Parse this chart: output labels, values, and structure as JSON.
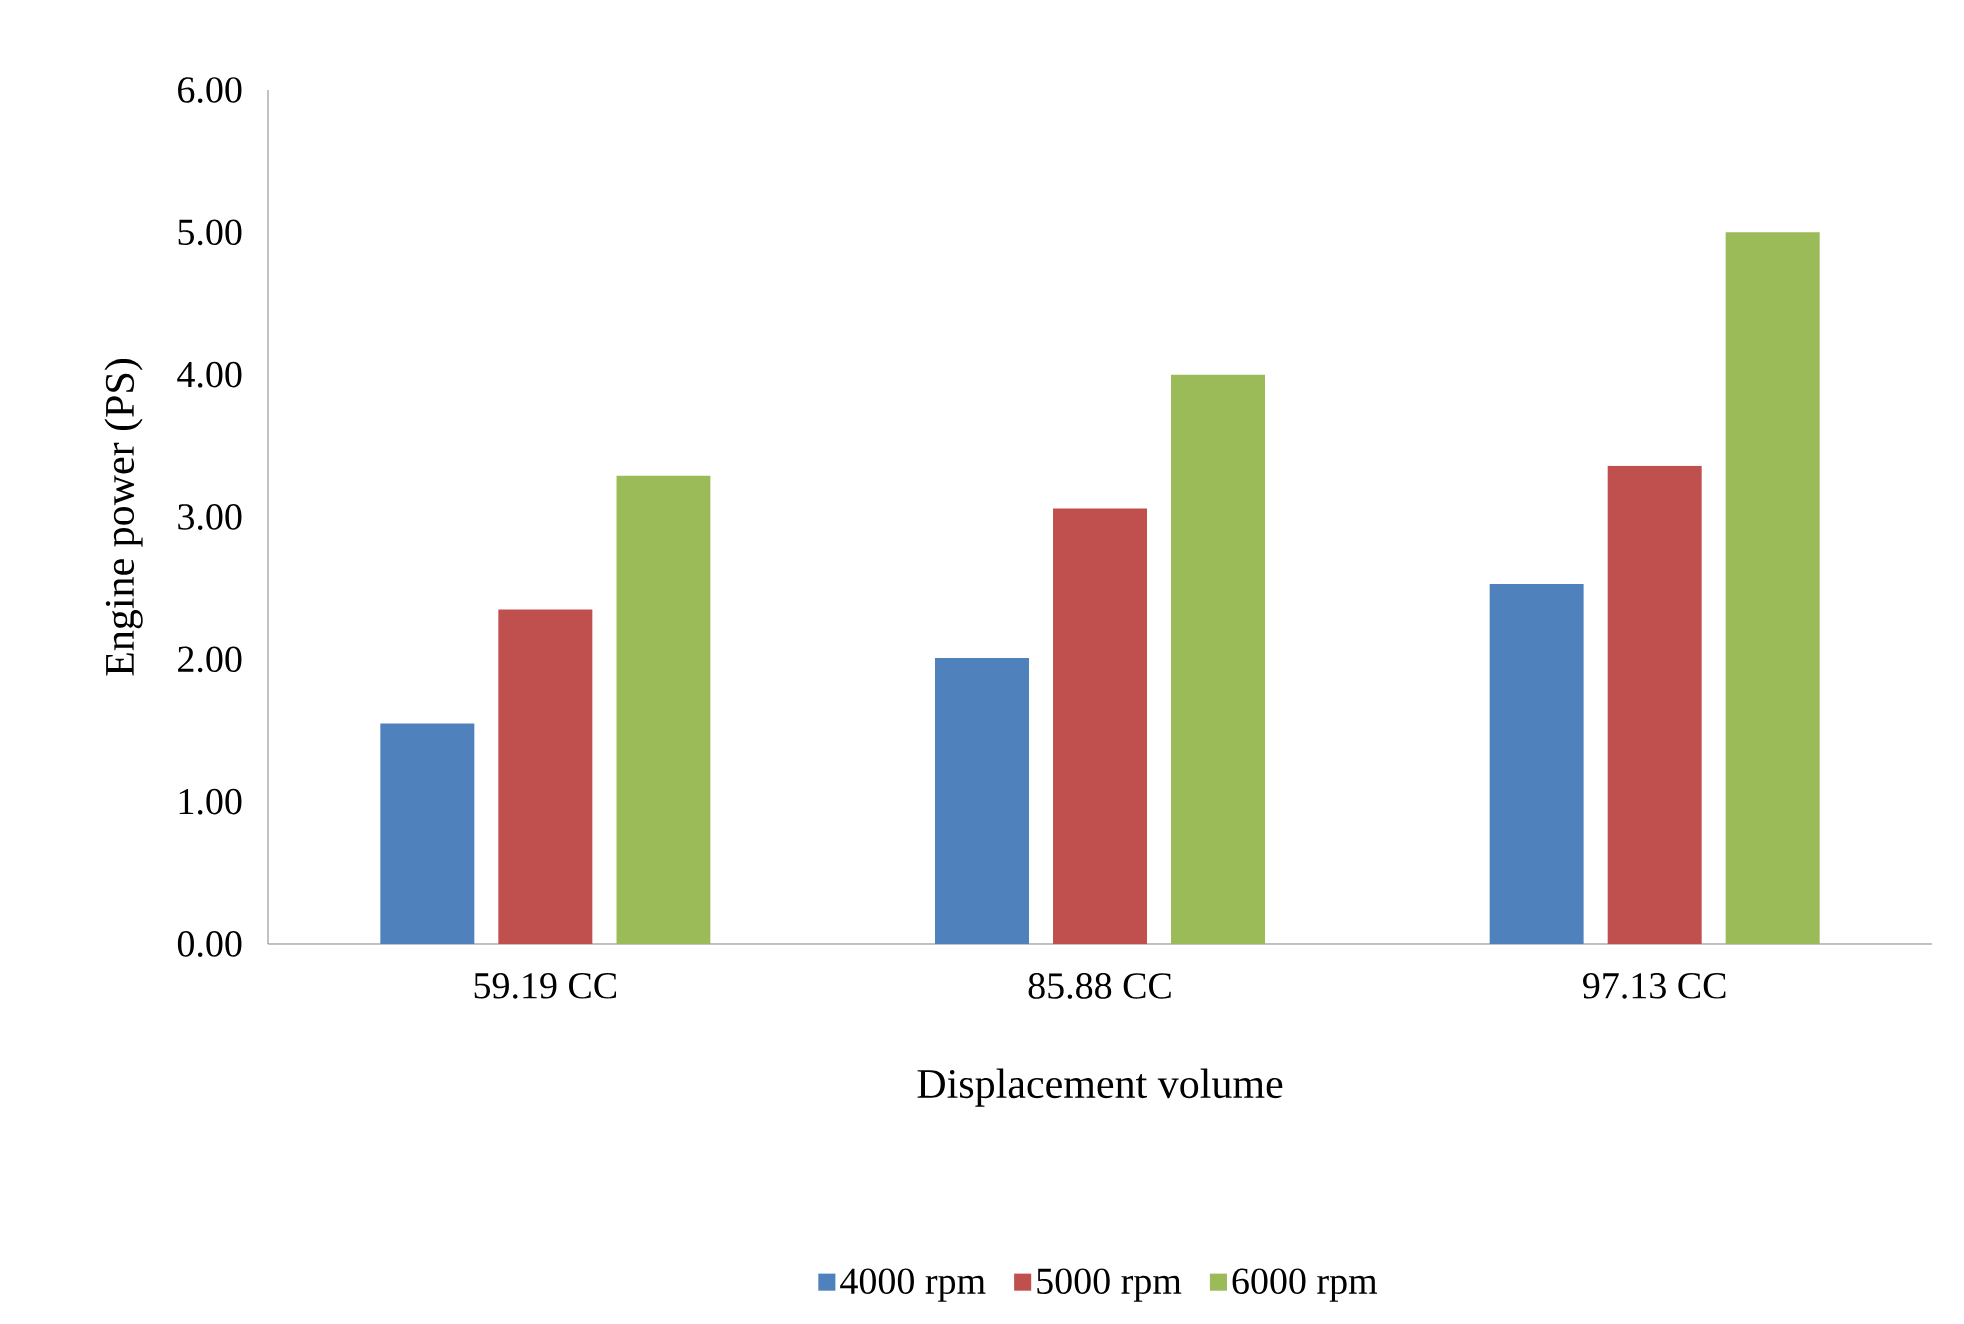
{
  "chart_data": {
    "type": "bar",
    "xlabel": "Displacement volume",
    "ylabel": "Engine power (PS)",
    "categories": [
      "59.19 CC",
      "85.88 CC",
      "97.13 CC"
    ],
    "series": [
      {
        "name": "4000 rpm",
        "color": "#4f81bd",
        "values": [
          1.55,
          2.01,
          2.53
        ]
      },
      {
        "name": "5000 rpm",
        "color": "#c0504d",
        "values": [
          2.35,
          3.06,
          3.36
        ]
      },
      {
        "name": "6000 rpm",
        "color": "#9bbb59",
        "values": [
          3.29,
          4.0,
          5.0
        ]
      }
    ],
    "ylim": [
      0,
      6
    ],
    "yticks": [
      {
        "value": 0,
        "label": "0.00"
      },
      {
        "value": 1,
        "label": "1.00"
      },
      {
        "value": 2,
        "label": "2.00"
      },
      {
        "value": 3,
        "label": "3.00"
      },
      {
        "value": 4,
        "label": "4.00"
      },
      {
        "value": 5,
        "label": "5.00"
      },
      {
        "value": 6,
        "label": "6.00"
      }
    ],
    "grid": false,
    "legend": "bottom"
  }
}
